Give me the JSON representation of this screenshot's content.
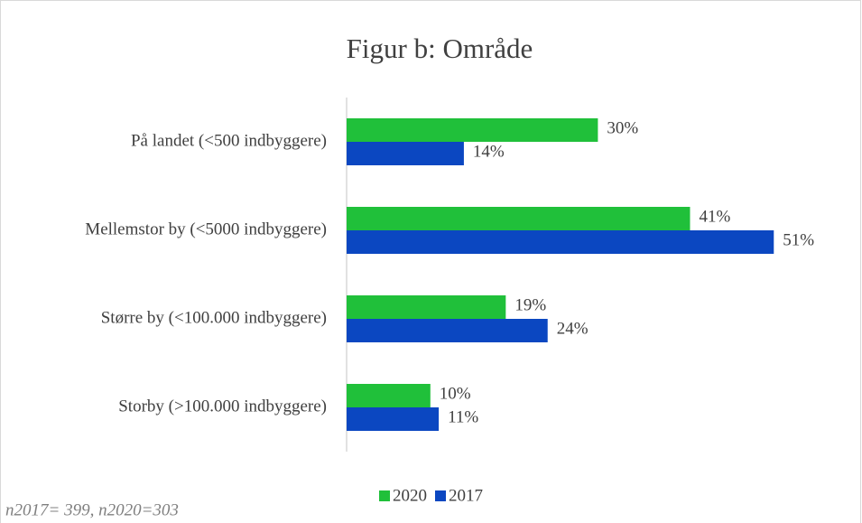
{
  "chart_data": {
    "type": "bar",
    "orientation": "horizontal",
    "title": "Figur b: Område",
    "categories": [
      "På landet (<500 indbyggere)",
      "Mellemstor by (<5000 indbyggere)",
      "Større by (<100.000 indbyggere)",
      "Storby (>100.000 indbyggere)"
    ],
    "series": [
      {
        "name": "2020",
        "color": "#20c03a",
        "values": [
          30,
          41,
          19,
          10
        ],
        "value_labels": [
          "30%",
          "41%",
          "19%",
          "10%"
        ]
      },
      {
        "name": "2017",
        "color": "#0b47c1",
        "values": [
          14,
          51,
          24,
          11
        ],
        "value_labels": [
          "14%",
          "51%",
          "24%",
          "11%"
        ]
      }
    ],
    "legend": "bottom",
    "annotation": "n2017= 399, n2020=303"
  }
}
